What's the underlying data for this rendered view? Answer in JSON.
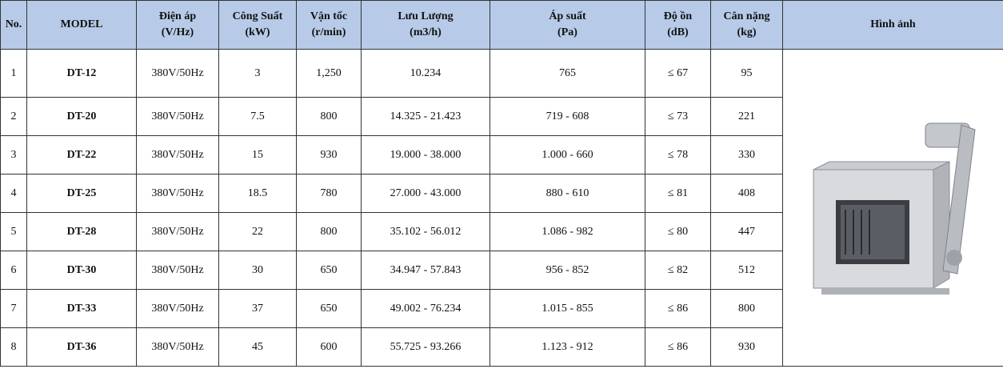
{
  "header": {
    "columns": [
      [
        "No."
      ],
      [
        "MODEL"
      ],
      [
        "Điện áp",
        "(V/Hz)"
      ],
      [
        "Công Suất",
        "(kW)"
      ],
      [
        "Vận tốc",
        "(r/min)"
      ],
      [
        "Lưu Lượng",
        "(m3/h)"
      ],
      [
        "Áp suất",
        "(Pa)"
      ],
      [
        "Độ ồn",
        "(dB)"
      ],
      [
        "Cân nặng",
        "(kg)"
      ],
      [
        "Hình ảnh"
      ]
    ]
  },
  "table": {
    "rows": [
      [
        "1",
        "DT-12",
        "380V/50Hz",
        "3",
        "1,250",
        "10.234",
        "765",
        "≤ 67",
        "95"
      ],
      [
        "2",
        "DT-20",
        "380V/50Hz",
        "7.5",
        "800",
        "14.325 - 21.423",
        "719 - 608",
        "≤ 73",
        "221"
      ],
      [
        "3",
        "DT-22",
        "380V/50Hz",
        "15",
        "930",
        "19.000 - 38.000",
        "1.000 - 660",
        "≤ 78",
        "330"
      ],
      [
        "4",
        "DT-25",
        "380V/50Hz",
        "18.5",
        "780",
        "27.000 - 43.000",
        "880 - 610",
        "≤ 81",
        "408"
      ],
      [
        "5",
        "DT-28",
        "380V/50Hz",
        "22",
        "800",
        "35.102 - 56.012",
        "1.086 - 982",
        "≤ 80",
        "447"
      ],
      [
        "6",
        "DT-30",
        "380V/50Hz",
        "30",
        "650",
        "34.947 - 57.843",
        "956 - 852",
        "≤ 82",
        "512"
      ],
      [
        "7",
        "DT-33",
        "380V/50Hz",
        "37",
        "650",
        "49.002 - 76.234",
        "1.015 - 855",
        "≤ 86",
        "800"
      ],
      [
        "8",
        "DT-36",
        "380V/50Hz",
        "45",
        "600",
        "55.725 - 93.266",
        "1.123 - 912",
        "≤ 86",
        "930"
      ]
    ]
  }
}
